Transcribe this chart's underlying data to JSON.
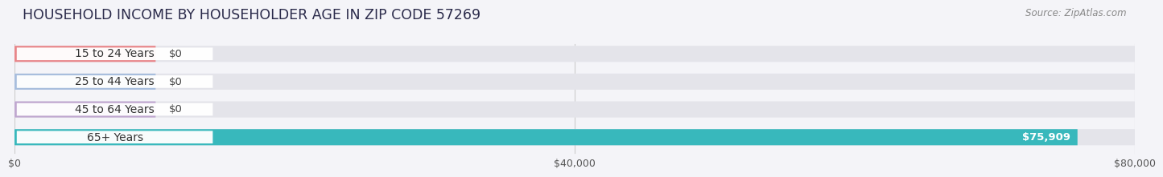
{
  "title": "HOUSEHOLD INCOME BY HOUSEHOLDER AGE IN ZIP CODE 57269",
  "source": "Source: ZipAtlas.com",
  "categories": [
    "15 to 24 Years",
    "25 to 44 Years",
    "45 to 64 Years",
    "65+ Years"
  ],
  "values": [
    0,
    0,
    0,
    75909
  ],
  "bar_colors": [
    "#e8868a",
    "#a8bedd",
    "#c0a8d0",
    "#38b8bc"
  ],
  "track_color": "#e4e4ea",
  "xlim": [
    0,
    80000
  ],
  "xtick_labels": [
    "$0",
    "$40,000",
    "$80,000"
  ],
  "xtick_values": [
    0,
    40000,
    80000
  ],
  "value_labels": [
    "$0",
    "$0",
    "$0",
    "$75,909"
  ],
  "background_color": "#f4f4f8",
  "title_fontsize": 12.5,
  "source_fontsize": 8.5,
  "label_fontsize": 10,
  "value_fontsize": 9.5
}
